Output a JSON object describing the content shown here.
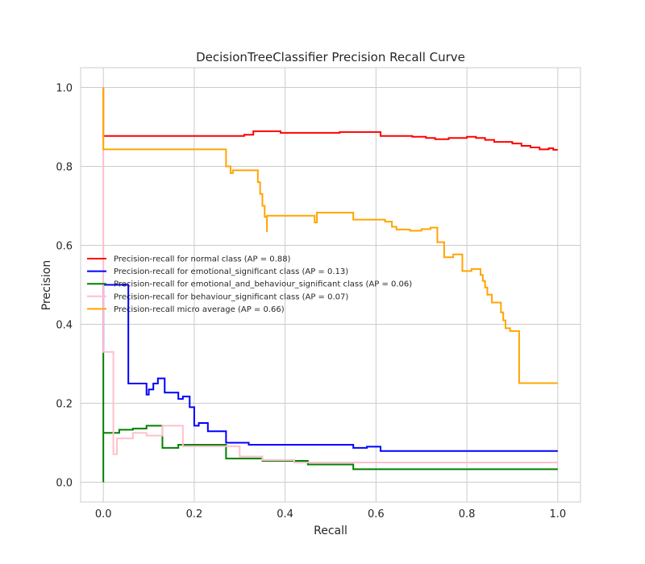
{
  "chart_data": {
    "type": "line",
    "step": true,
    "title": "DecisionTreeClassifier Precision Recall Curve",
    "xlabel": "Recall",
    "ylabel": "Precision",
    "xlim": [
      -0.05,
      1.05
    ],
    "ylim": [
      -0.05,
      1.05
    ],
    "xticks": [
      0.0,
      0.2,
      0.4,
      0.6,
      0.8,
      1.0
    ],
    "yticks": [
      0.0,
      0.2,
      0.4,
      0.6,
      0.8,
      1.0
    ],
    "xtick_labels": [
      "0.0",
      "0.2",
      "0.4",
      "0.6",
      "0.8",
      "1.0"
    ],
    "ytick_labels": [
      "0.0",
      "0.2",
      "0.4",
      "0.6",
      "0.8",
      "1.0"
    ],
    "grid": true,
    "legend_position": "center-left",
    "series": [
      {
        "name": "Precision-recall for normal class (AP = 0.88)",
        "color": "#ff0000",
        "points": [
          [
            0.0,
            1.0
          ],
          [
            0.0,
            0.877
          ],
          [
            0.08,
            0.877
          ],
          [
            0.15,
            0.877
          ],
          [
            0.31,
            0.877
          ],
          [
            0.31,
            0.88
          ],
          [
            0.33,
            0.88
          ],
          [
            0.33,
            0.889
          ],
          [
            0.39,
            0.889
          ],
          [
            0.39,
            0.885
          ],
          [
            0.52,
            0.885
          ],
          [
            0.52,
            0.887
          ],
          [
            0.61,
            0.887
          ],
          [
            0.61,
            0.877
          ],
          [
            0.68,
            0.877
          ],
          [
            0.68,
            0.875
          ],
          [
            0.71,
            0.875
          ],
          [
            0.71,
            0.872
          ],
          [
            0.73,
            0.872
          ],
          [
            0.73,
            0.869
          ],
          [
            0.76,
            0.869
          ],
          [
            0.76,
            0.872
          ],
          [
            0.8,
            0.872
          ],
          [
            0.8,
            0.875
          ],
          [
            0.82,
            0.875
          ],
          [
            0.82,
            0.872
          ],
          [
            0.84,
            0.872
          ],
          [
            0.84,
            0.867
          ],
          [
            0.86,
            0.867
          ],
          [
            0.86,
            0.862
          ],
          [
            0.9,
            0.862
          ],
          [
            0.9,
            0.858
          ],
          [
            0.92,
            0.858
          ],
          [
            0.92,
            0.852
          ],
          [
            0.94,
            0.852
          ],
          [
            0.94,
            0.848
          ],
          [
            0.96,
            0.848
          ],
          [
            0.96,
            0.843
          ],
          [
            0.98,
            0.843
          ],
          [
            0.98,
            0.846
          ],
          [
            0.99,
            0.846
          ],
          [
            0.99,
            0.842
          ],
          [
            1.0,
            0.842
          ]
        ]
      },
      {
        "name": "Precision-recall for emotional_significant class (AP = 0.13)",
        "color": "#0000ff",
        "points": [
          [
            0.0,
            0.33
          ],
          [
            0.0,
            0.5
          ],
          [
            0.055,
            0.5
          ],
          [
            0.055,
            0.25
          ],
          [
            0.095,
            0.25
          ],
          [
            0.095,
            0.222
          ],
          [
            0.1,
            0.222
          ],
          [
            0.1,
            0.235
          ],
          [
            0.11,
            0.235
          ],
          [
            0.11,
            0.25
          ],
          [
            0.12,
            0.25
          ],
          [
            0.12,
            0.263
          ],
          [
            0.135,
            0.263
          ],
          [
            0.135,
            0.227
          ],
          [
            0.165,
            0.227
          ],
          [
            0.165,
            0.211
          ],
          [
            0.175,
            0.211
          ],
          [
            0.175,
            0.217
          ],
          [
            0.19,
            0.217
          ],
          [
            0.19,
            0.19
          ],
          [
            0.2,
            0.19
          ],
          [
            0.2,
            0.143
          ],
          [
            0.21,
            0.143
          ],
          [
            0.21,
            0.15
          ],
          [
            0.23,
            0.15
          ],
          [
            0.23,
            0.129
          ],
          [
            0.27,
            0.129
          ],
          [
            0.27,
            0.1
          ],
          [
            0.32,
            0.1
          ],
          [
            0.32,
            0.095
          ],
          [
            0.55,
            0.095
          ],
          [
            0.55,
            0.087
          ],
          [
            0.58,
            0.087
          ],
          [
            0.58,
            0.09
          ],
          [
            0.61,
            0.09
          ],
          [
            0.61,
            0.079
          ],
          [
            1.0,
            0.079
          ]
        ]
      },
      {
        "name": "Precision-recall for emotional_and_behaviour_significant class (AP = 0.06)",
        "color": "#008000",
        "points": [
          [
            0.0,
            0.0
          ],
          [
            0.0,
            0.33
          ],
          [
            0.0,
            0.125
          ],
          [
            0.035,
            0.125
          ],
          [
            0.035,
            0.133
          ],
          [
            0.065,
            0.133
          ],
          [
            0.065,
            0.136
          ],
          [
            0.095,
            0.136
          ],
          [
            0.095,
            0.143
          ],
          [
            0.13,
            0.143
          ],
          [
            0.13,
            0.087
          ],
          [
            0.165,
            0.087
          ],
          [
            0.165,
            0.095
          ],
          [
            0.27,
            0.095
          ],
          [
            0.27,
            0.06
          ],
          [
            0.35,
            0.06
          ],
          [
            0.35,
            0.054
          ],
          [
            0.45,
            0.054
          ],
          [
            0.45,
            0.045
          ],
          [
            0.55,
            0.045
          ],
          [
            0.55,
            0.033
          ],
          [
            1.0,
            0.033
          ]
        ]
      },
      {
        "name": "Precision-recall for behaviour_significant class (AP = 0.07)",
        "color": "#ffc0cb",
        "points": [
          [
            0.0,
            1.0
          ],
          [
            0.0,
            0.33
          ],
          [
            0.022,
            0.33
          ],
          [
            0.022,
            0.071
          ],
          [
            0.03,
            0.071
          ],
          [
            0.03,
            0.111
          ],
          [
            0.065,
            0.111
          ],
          [
            0.065,
            0.125
          ],
          [
            0.095,
            0.125
          ],
          [
            0.095,
            0.118
          ],
          [
            0.13,
            0.118
          ],
          [
            0.13,
            0.143
          ],
          [
            0.175,
            0.143
          ],
          [
            0.175,
            0.091
          ],
          [
            0.3,
            0.091
          ],
          [
            0.3,
            0.065
          ],
          [
            0.35,
            0.065
          ],
          [
            0.35,
            0.056
          ],
          [
            0.42,
            0.056
          ],
          [
            0.42,
            0.05
          ],
          [
            1.0,
            0.05
          ]
        ]
      },
      {
        "name": "Precision-recall micro average (AP = 0.66)",
        "color": "#ffa500",
        "points": [
          [
            0.0,
            1.0
          ],
          [
            0.0,
            0.843
          ],
          [
            0.27,
            0.843
          ],
          [
            0.27,
            0.8
          ],
          [
            0.28,
            0.8
          ],
          [
            0.28,
            0.783
          ],
          [
            0.285,
            0.783
          ],
          [
            0.285,
            0.79
          ],
          [
            0.34,
            0.79
          ],
          [
            0.34,
            0.76
          ],
          [
            0.345,
            0.76
          ],
          [
            0.345,
            0.73
          ],
          [
            0.35,
            0.73
          ],
          [
            0.35,
            0.7
          ],
          [
            0.355,
            0.7
          ],
          [
            0.355,
            0.672
          ],
          [
            0.36,
            0.672
          ],
          [
            0.36,
            0.634
          ],
          [
            0.36,
            0.675
          ],
          [
            0.465,
            0.675
          ],
          [
            0.465,
            0.658
          ],
          [
            0.47,
            0.658
          ],
          [
            0.47,
            0.683
          ],
          [
            0.55,
            0.683
          ],
          [
            0.55,
            0.665
          ],
          [
            0.62,
            0.665
          ],
          [
            0.62,
            0.66
          ],
          [
            0.635,
            0.66
          ],
          [
            0.635,
            0.647
          ],
          [
            0.645,
            0.647
          ],
          [
            0.645,
            0.64
          ],
          [
            0.675,
            0.64
          ],
          [
            0.675,
            0.637
          ],
          [
            0.7,
            0.637
          ],
          [
            0.7,
            0.641
          ],
          [
            0.72,
            0.641
          ],
          [
            0.72,
            0.645
          ],
          [
            0.735,
            0.645
          ],
          [
            0.735,
            0.608
          ],
          [
            0.75,
            0.608
          ],
          [
            0.75,
            0.57
          ],
          [
            0.77,
            0.57
          ],
          [
            0.77,
            0.577
          ],
          [
            0.79,
            0.577
          ],
          [
            0.79,
            0.535
          ],
          [
            0.81,
            0.535
          ],
          [
            0.81,
            0.54
          ],
          [
            0.83,
            0.54
          ],
          [
            0.83,
            0.525
          ],
          [
            0.835,
            0.525
          ],
          [
            0.835,
            0.51
          ],
          [
            0.84,
            0.51
          ],
          [
            0.84,
            0.493
          ],
          [
            0.845,
            0.493
          ],
          [
            0.845,
            0.475
          ],
          [
            0.855,
            0.475
          ],
          [
            0.855,
            0.455
          ],
          [
            0.875,
            0.455
          ],
          [
            0.875,
            0.43
          ],
          [
            0.88,
            0.43
          ],
          [
            0.88,
            0.41
          ],
          [
            0.885,
            0.41
          ],
          [
            0.885,
            0.39
          ],
          [
            0.895,
            0.39
          ],
          [
            0.895,
            0.383
          ],
          [
            0.915,
            0.383
          ],
          [
            0.915,
            0.251
          ],
          [
            1.0,
            0.251
          ]
        ]
      }
    ]
  }
}
